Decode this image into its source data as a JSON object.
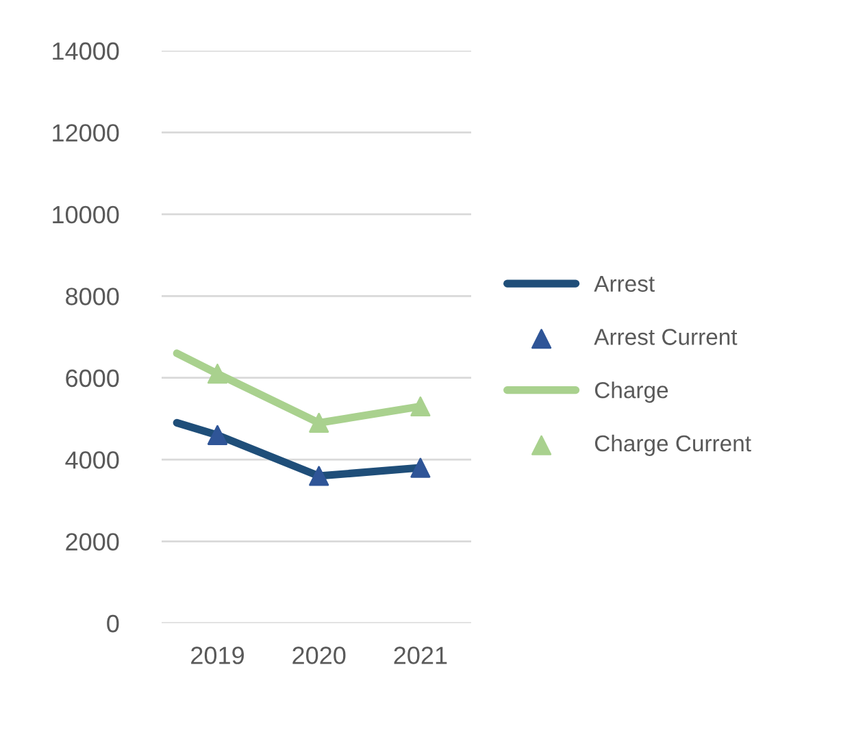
{
  "chart_data": {
    "type": "line",
    "x": [
      2018.6,
      2019,
      2020,
      2021
    ],
    "xlim": [
      2018.45,
      2021.5
    ],
    "xticks": [
      2019,
      2020,
      2021
    ],
    "ylim": [
      0,
      14000
    ],
    "yticks": [
      0,
      2000,
      4000,
      6000,
      8000,
      10000,
      12000,
      14000
    ],
    "grid": "y",
    "legend": "right",
    "series": [
      {
        "name": "Arrest",
        "color": "#1f4e79",
        "values": [
          4900,
          4600,
          3600,
          3800
        ]
      },
      {
        "name": "Arrest Current",
        "type": "scatter",
        "marker": "triangle",
        "color": "#2f5597",
        "x": [
          2019,
          2020,
          2021
        ],
        "values": [
          4600,
          3600,
          3800
        ]
      },
      {
        "name": "Charge",
        "color": "#a9d18e",
        "values": [
          6600,
          6100,
          4900,
          5300
        ]
      },
      {
        "name": "Charge Current",
        "type": "scatter",
        "marker": "triangle",
        "color": "#a9d18e",
        "x": [
          2019,
          2020,
          2021
        ],
        "values": [
          6100,
          4900,
          5300
        ]
      }
    ]
  }
}
